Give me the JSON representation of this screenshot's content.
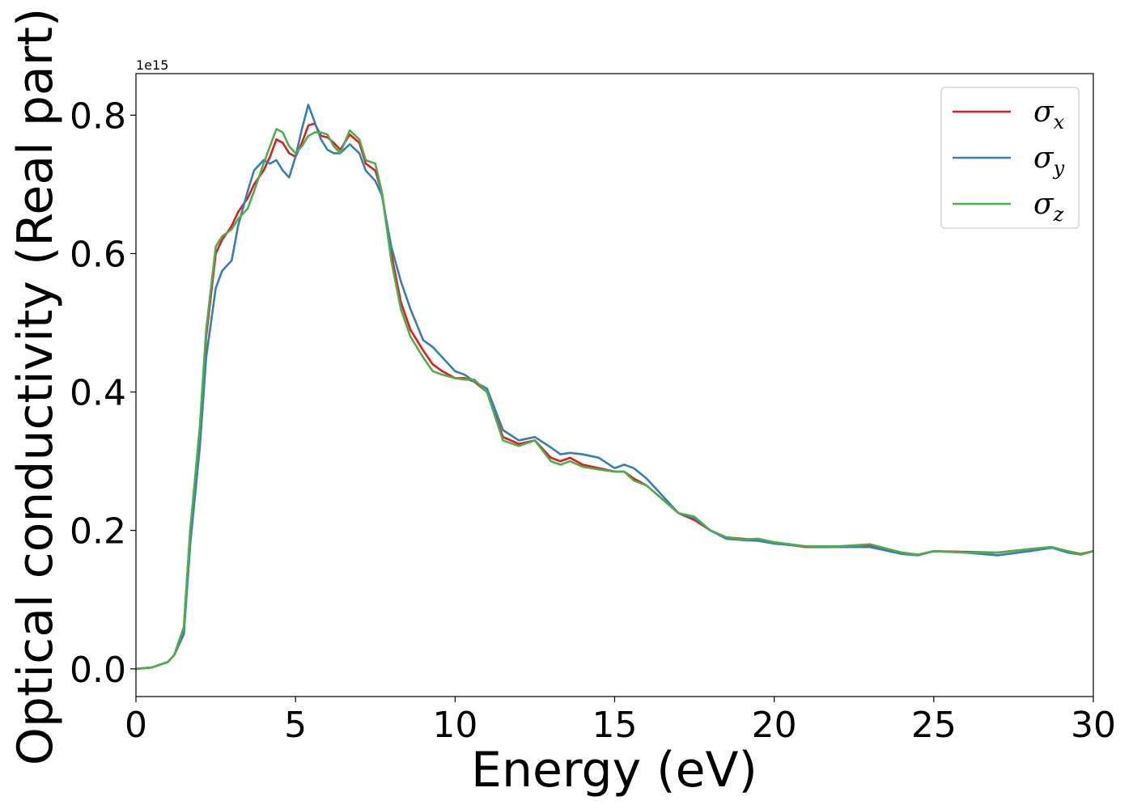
{
  "chart_data": {
    "type": "line",
    "title": "",
    "xlabel": "Energy (eV)",
    "ylabel": "Optical conductivity (Real part)",
    "y_offset_label": "1e15",
    "y_scale": 1000000000000000.0,
    "xlim": [
      0,
      30
    ],
    "ylim": [
      -0.04,
      0.86
    ],
    "xticks": [
      0,
      5,
      10,
      15,
      20,
      25,
      30
    ],
    "xtick_labels": [
      "0",
      "5",
      "10",
      "15",
      "20",
      "25",
      "30"
    ],
    "yticks": [
      0.0,
      0.2,
      0.4,
      0.6,
      0.8
    ],
    "ytick_labels": [
      "0.0",
      "0.2",
      "0.4",
      "0.6",
      "0.8"
    ],
    "grid": false,
    "legend_position": "top-right",
    "series": [
      {
        "name": "σ",
        "subscript": "x",
        "color": "#e41a1c",
        "x": [
          0,
          0.5,
          1.0,
          1.2,
          1.5,
          1.7,
          2.0,
          2.2,
          2.5,
          2.7,
          3.0,
          3.2,
          3.5,
          3.7,
          4.0,
          4.2,
          4.4,
          4.6,
          4.8,
          5.0,
          5.2,
          5.4,
          5.6,
          5.8,
          6.0,
          6.2,
          6.4,
          6.7,
          7.0,
          7.2,
          7.5,
          7.7,
          8.0,
          8.3,
          8.6,
          9.0,
          9.3,
          9.6,
          10.0,
          10.3,
          10.6,
          11.0,
          11.5,
          12.0,
          12.5,
          13.0,
          13.3,
          13.6,
          14.0,
          14.5,
          15.0,
          15.3,
          15.6,
          16.0,
          16.5,
          17.0,
          17.5,
          18.0,
          18.5,
          19.0,
          19.5,
          20.0,
          21.0,
          22.0,
          23.0,
          24.0,
          24.5,
          25.0,
          26.0,
          27.0,
          28.0,
          28.7,
          29.2,
          29.6,
          30.0
        ],
        "y": [
          0,
          0.002,
          0.01,
          0.02,
          0.06,
          0.2,
          0.34,
          0.48,
          0.6,
          0.62,
          0.64,
          0.66,
          0.68,
          0.7,
          0.72,
          0.74,
          0.765,
          0.76,
          0.745,
          0.74,
          0.76,
          0.785,
          0.788,
          0.77,
          0.768,
          0.76,
          0.75,
          0.772,
          0.76,
          0.73,
          0.72,
          0.69,
          0.6,
          0.53,
          0.49,
          0.46,
          0.44,
          0.43,
          0.42,
          0.42,
          0.415,
          0.4,
          0.335,
          0.325,
          0.33,
          0.305,
          0.3,
          0.305,
          0.295,
          0.29,
          0.285,
          0.285,
          0.275,
          0.265,
          0.245,
          0.225,
          0.215,
          0.2,
          0.19,
          0.188,
          0.186,
          0.182,
          0.176,
          0.176,
          0.178,
          0.168,
          0.165,
          0.17,
          0.169,
          0.168,
          0.173,
          0.176,
          0.17,
          0.166,
          0.17
        ]
      },
      {
        "name": "σ",
        "subscript": "y",
        "color": "#377eb8",
        "x": [
          0,
          0.5,
          1.0,
          1.2,
          1.5,
          1.7,
          2.0,
          2.2,
          2.5,
          2.7,
          3.0,
          3.2,
          3.5,
          3.7,
          4.0,
          4.2,
          4.4,
          4.6,
          4.8,
          5.0,
          5.2,
          5.4,
          5.6,
          5.8,
          6.0,
          6.2,
          6.4,
          6.7,
          7.0,
          7.2,
          7.5,
          7.7,
          8.0,
          8.3,
          8.6,
          9.0,
          9.3,
          9.6,
          10.0,
          10.3,
          10.6,
          11.0,
          11.5,
          12.0,
          12.5,
          13.0,
          13.3,
          13.6,
          14.0,
          14.5,
          15.0,
          15.3,
          15.6,
          16.0,
          16.5,
          17.0,
          17.5,
          18.0,
          18.5,
          19.0,
          19.5,
          20.0,
          21.0,
          22.0,
          23.0,
          24.0,
          24.5,
          25.0,
          26.0,
          27.0,
          28.0,
          28.7,
          29.2,
          29.6,
          30.0
        ],
        "y": [
          0,
          0.002,
          0.01,
          0.02,
          0.05,
          0.18,
          0.32,
          0.45,
          0.55,
          0.575,
          0.59,
          0.64,
          0.69,
          0.72,
          0.735,
          0.73,
          0.735,
          0.72,
          0.71,
          0.74,
          0.78,
          0.815,
          0.79,
          0.765,
          0.75,
          0.745,
          0.745,
          0.758,
          0.745,
          0.72,
          0.705,
          0.685,
          0.61,
          0.56,
          0.52,
          0.475,
          0.465,
          0.45,
          0.43,
          0.425,
          0.415,
          0.405,
          0.345,
          0.33,
          0.335,
          0.32,
          0.31,
          0.312,
          0.31,
          0.305,
          0.29,
          0.295,
          0.29,
          0.275,
          0.25,
          0.225,
          0.218,
          0.2,
          0.188,
          0.186,
          0.185,
          0.181,
          0.177,
          0.176,
          0.176,
          0.166,
          0.164,
          0.17,
          0.168,
          0.164,
          0.17,
          0.175,
          0.168,
          0.165,
          0.17
        ]
      },
      {
        "name": "σ",
        "subscript": "z",
        "color": "#4daf4a",
        "x": [
          0,
          0.5,
          1.0,
          1.2,
          1.5,
          1.7,
          2.0,
          2.2,
          2.5,
          2.7,
          3.0,
          3.2,
          3.5,
          3.7,
          4.0,
          4.2,
          4.4,
          4.6,
          4.8,
          5.0,
          5.2,
          5.4,
          5.6,
          5.8,
          6.0,
          6.2,
          6.4,
          6.7,
          7.0,
          7.2,
          7.5,
          7.7,
          8.0,
          8.3,
          8.6,
          9.0,
          9.3,
          9.6,
          10.0,
          10.3,
          10.6,
          11.0,
          11.5,
          12.0,
          12.5,
          13.0,
          13.3,
          13.6,
          14.0,
          14.5,
          15.0,
          15.3,
          15.6,
          16.0,
          16.5,
          17.0,
          17.5,
          18.0,
          18.5,
          19.0,
          19.5,
          20.0,
          21.0,
          22.0,
          23.0,
          24.0,
          24.5,
          25.0,
          26.0,
          27.0,
          28.0,
          28.7,
          29.2,
          29.6,
          30.0
        ],
        "y": [
          0,
          0.002,
          0.01,
          0.02,
          0.06,
          0.2,
          0.35,
          0.49,
          0.61,
          0.625,
          0.635,
          0.65,
          0.665,
          0.69,
          0.73,
          0.755,
          0.78,
          0.775,
          0.755,
          0.745,
          0.755,
          0.77,
          0.775,
          0.775,
          0.772,
          0.755,
          0.745,
          0.778,
          0.765,
          0.735,
          0.73,
          0.69,
          0.59,
          0.52,
          0.48,
          0.45,
          0.43,
          0.425,
          0.42,
          0.418,
          0.418,
          0.4,
          0.33,
          0.322,
          0.33,
          0.3,
          0.295,
          0.3,
          0.292,
          0.288,
          0.285,
          0.285,
          0.272,
          0.265,
          0.245,
          0.225,
          0.22,
          0.2,
          0.19,
          0.187,
          0.188,
          0.183,
          0.177,
          0.177,
          0.18,
          0.168,
          0.165,
          0.17,
          0.168,
          0.168,
          0.173,
          0.176,
          0.17,
          0.165,
          0.17
        ]
      }
    ]
  }
}
